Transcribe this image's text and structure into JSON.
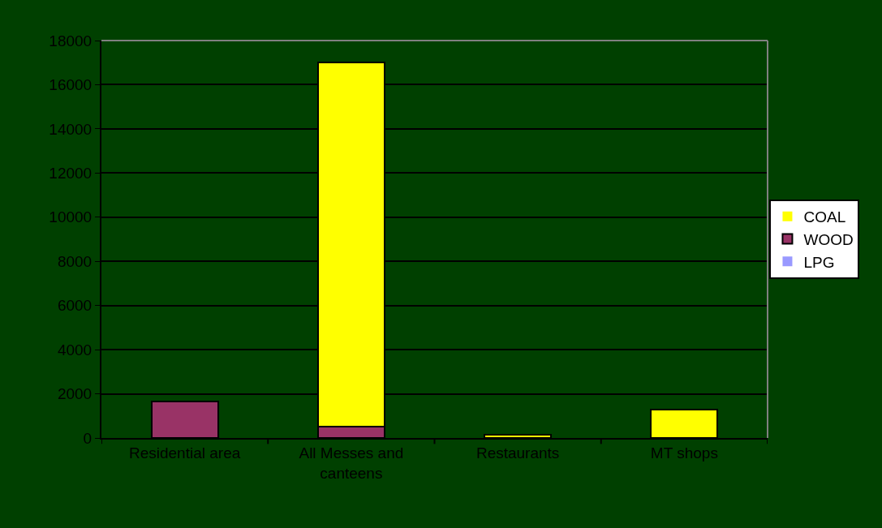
{
  "chart_data": {
    "type": "bar",
    "stacked": true,
    "categories": [
      "Residential area",
      "All Messes and canteens",
      "Restaurants",
      "MT shops"
    ],
    "series": [
      {
        "name": "LPG",
        "color": "#9999ff",
        "values": [
          0,
          0,
          0,
          0
        ]
      },
      {
        "name": "WOOD",
        "color": "#993366",
        "values": [
          1650,
          500,
          0,
          0
        ]
      },
      {
        "name": "COAL",
        "color": "#ffff00",
        "values": [
          0,
          16500,
          150,
          1300
        ]
      }
    ],
    "ylim": [
      0,
      18000
    ],
    "yticks": [
      0,
      2000,
      4000,
      6000,
      8000,
      10000,
      12000,
      14000,
      16000,
      18000
    ],
    "grid": "y",
    "legend": "right"
  }
}
